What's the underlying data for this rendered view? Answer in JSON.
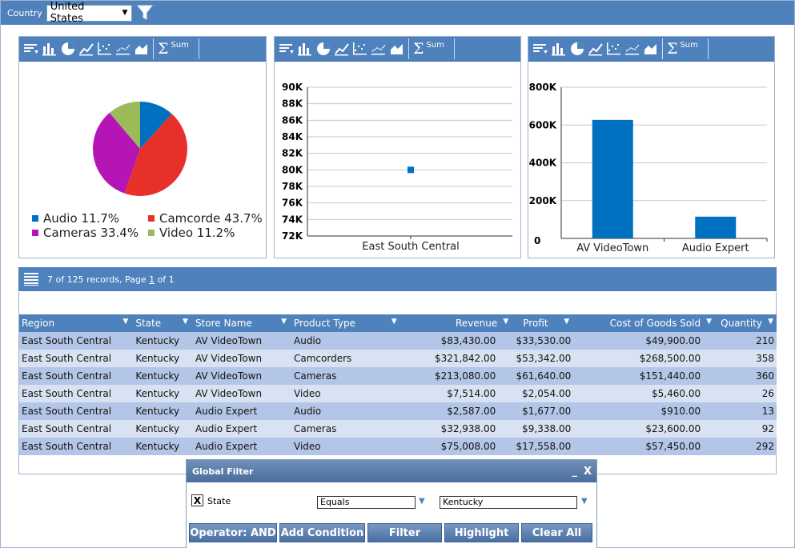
{
  "filter_bar": {
    "label": "Country",
    "selected": "United States"
  },
  "toolbar": {
    "sum_label": "Sum"
  },
  "pie": {
    "chart_data": {
      "type": "pie",
      "slices": [
        {
          "label": "Audio",
          "value": 11.7,
          "color": "#0070c0"
        },
        {
          "label": "Camcorde",
          "value": 43.7,
          "color": "#e8302a"
        },
        {
          "label": "Cameras",
          "value": 33.4,
          "color": "#b515b5"
        },
        {
          "label": "Video",
          "value": 11.2,
          "color": "#9bbb59"
        }
      ]
    },
    "legend": [
      "Audio 11.7%",
      "Camcorde 43.7%",
      "Cameras 33.4%",
      "Video 11.2%"
    ]
  },
  "scatter": {
    "chart_data": {
      "type": "scatter",
      "categories": [
        "East South Central"
      ],
      "values": [
        80000
      ],
      "ylim": [
        72000,
        90000
      ],
      "yticks": [
        "72K",
        "74K",
        "76K",
        "78K",
        "80K",
        "82K",
        "84K",
        "86K",
        "88K",
        "90K"
      ],
      "color": "#0070c0"
    }
  },
  "bar": {
    "chart_data": {
      "type": "bar",
      "categories": [
        "AV VideoTown",
        "Audio Expert"
      ],
      "values": [
        627000,
        115000
      ],
      "ylim": [
        0,
        800000
      ],
      "yticks": [
        "0",
        "200K",
        "400K",
        "600K",
        "800K"
      ],
      "color": "#0070c0"
    }
  },
  "grid": {
    "info_prefix": "7 of 125 records, Page ",
    "page": "1",
    "info_suffix": " of 1",
    "columns": [
      "Region",
      "State",
      "Store Name",
      "Product Type",
      "Revenue",
      "Profit",
      "Cost of Goods Sold",
      "Quantity"
    ],
    "rows": [
      [
        "East South Central",
        "Kentucky",
        "AV VideoTown",
        "Audio",
        "$83,430.00",
        "$33,530.00",
        "$49,900.00",
        "210"
      ],
      [
        "East South Central",
        "Kentucky",
        "AV VideoTown",
        "Camcorders",
        "$321,842.00",
        "$53,342.00",
        "$268,500.00",
        "358"
      ],
      [
        "East South Central",
        "Kentucky",
        "AV VideoTown",
        "Cameras",
        "$213,080.00",
        "$61,640.00",
        "$151,440.00",
        "360"
      ],
      [
        "East South Central",
        "Kentucky",
        "AV VideoTown",
        "Video",
        "$7,514.00",
        "$2,054.00",
        "$5,460.00",
        "26"
      ],
      [
        "East South Central",
        "Kentucky",
        "Audio Expert",
        "Audio",
        "$2,587.00",
        "$1,677.00",
        "$910.00",
        "13"
      ],
      [
        "East South Central",
        "Kentucky",
        "Audio Expert",
        "Cameras",
        "$32,938.00",
        "$9,338.00",
        "$23,600.00",
        "92"
      ],
      [
        "East South Central",
        "Kentucky",
        "Audio Expert",
        "Video",
        "$75,008.00",
        "$17,558.00",
        "$57,450.00",
        "292"
      ]
    ]
  },
  "global_filter": {
    "title": "Global Filter",
    "minimize": "_",
    "close": "X",
    "checkbox_mark": "X",
    "field_label": "State",
    "operator_value": "Equals",
    "value": "Kentucky",
    "buttons": [
      "Operator: AND",
      "Add Condition",
      "Filter",
      "Highlight",
      "Clear All"
    ]
  }
}
